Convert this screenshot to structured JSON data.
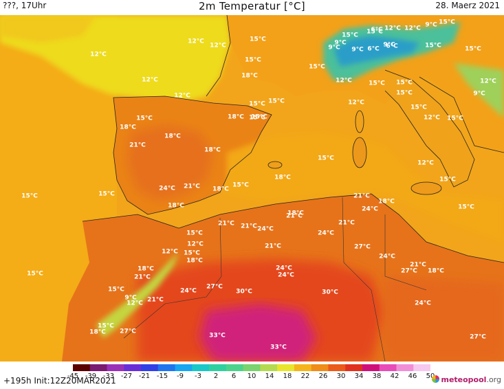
{
  "header": {
    "left": "???, 17Uhr",
    "title": "2m Temperatur [°C]",
    "date": "28. Maerz 2021"
  },
  "footer": {
    "init": "+195h Init:12Z20MAR2021",
    "brand": "meteopool",
    "brand_tld": ".org"
  },
  "legend": {
    "ticks": [
      "-45",
      "-39",
      "-33",
      "-27",
      "-21",
      "-15",
      "-9",
      "-3",
      "2",
      "6",
      "10",
      "14",
      "18",
      "22",
      "26",
      "30",
      "34",
      "38",
      "42",
      "46",
      "50"
    ],
    "colors": [
      "#5a0000",
      "#7a1a70",
      "#9b30b8",
      "#6a2ed8",
      "#3040e6",
      "#1f75ee",
      "#17a6f0",
      "#18c8c8",
      "#2fd0a0",
      "#4bd38b",
      "#79d36e",
      "#b4da4f",
      "#e9e52a",
      "#f5b51a",
      "#f08c18",
      "#eb5a18",
      "#e2301f",
      "#d0107a",
      "#e84cb8",
      "#f08fd8",
      "#f7c8f0"
    ]
  },
  "map_labels": [
    {
      "text": "12°C"
    },
    {
      "text": "12°C"
    },
    {
      "text": "12°C"
    },
    {
      "text": "15°C"
    },
    {
      "text": "15°C"
    },
    {
      "text": "18°C"
    },
    {
      "text": "12°C"
    },
    {
      "text": "12°C"
    },
    {
      "text": "15°C"
    },
    {
      "text": "18°C"
    },
    {
      "text": "21°C"
    },
    {
      "text": "18°C"
    },
    {
      "text": "18°C"
    },
    {
      "text": "18°C"
    },
    {
      "text": "15°C"
    },
    {
      "text": "15°C"
    },
    {
      "text": "15°C"
    },
    {
      "text": "24°C"
    },
    {
      "text": "21°C"
    },
    {
      "text": "18°C"
    },
    {
      "text": "15°C"
    },
    {
      "text": "18°C"
    },
    {
      "text": "18°C"
    },
    {
      "text": "15°C"
    },
    {
      "text": "15°C"
    },
    {
      "text": "15°C"
    },
    {
      "text": "15°C"
    },
    {
      "text": "12°C"
    },
    {
      "text": "15°C"
    },
    {
      "text": "15°C"
    },
    {
      "text": "12°C"
    },
    {
      "text": "15°C"
    },
    {
      "text": "12°C"
    },
    {
      "text": "12°C"
    },
    {
      "text": "9°C"
    },
    {
      "text": "9°C"
    },
    {
      "text": "15°C"
    },
    {
      "text": "9°C"
    },
    {
      "text": "6°C"
    },
    {
      "text": "15°C"
    },
    {
      "text": "6°C"
    },
    {
      "text": "12°C"
    },
    {
      "text": "9°C"
    },
    {
      "text": "6°C"
    },
    {
      "text": "9°C"
    },
    {
      "text": "15°C"
    },
    {
      "text": "12°C"
    },
    {
      "text": "15°C"
    },
    {
      "text": "15°C"
    },
    {
      "text": "15°C"
    },
    {
      "text": "15°C"
    },
    {
      "text": "15°C"
    },
    {
      "text": "12°C"
    },
    {
      "text": "15°C"
    },
    {
      "text": "9°C"
    },
    {
      "text": "15°C"
    },
    {
      "text": "15°C"
    },
    {
      "text": "18°C"
    },
    {
      "text": "21°C"
    },
    {
      "text": "21°C"
    },
    {
      "text": "24°C"
    },
    {
      "text": "21°C"
    },
    {
      "text": "21°C"
    },
    {
      "text": "24°C"
    },
    {
      "text": "21°C"
    },
    {
      "text": "21°C"
    },
    {
      "text": "24°C"
    },
    {
      "text": "18°C"
    },
    {
      "text": "27°C"
    },
    {
      "text": "24°C"
    },
    {
      "text": "27°C"
    },
    {
      "text": "21°C"
    },
    {
      "text": "18°C"
    },
    {
      "text": "24°C"
    },
    {
      "text": "27°C"
    },
    {
      "text": "15°C"
    },
    {
      "text": "12°C"
    },
    {
      "text": "15°C"
    },
    {
      "text": "18°C"
    },
    {
      "text": "18°C"
    },
    {
      "text": "21°C"
    },
    {
      "text": "15°C"
    },
    {
      "text": "9°C"
    },
    {
      "text": "12°C"
    },
    {
      "text": "21°C"
    },
    {
      "text": "24°C"
    },
    {
      "text": "27°C"
    },
    {
      "text": "30°C"
    },
    {
      "text": "30°C"
    },
    {
      "text": "15°C"
    },
    {
      "text": "18°C"
    },
    {
      "text": "27°C"
    },
    {
      "text": "33°C"
    },
    {
      "text": "33°C"
    },
    {
      "text": "24°C"
    },
    {
      "text": "24°C"
    },
    {
      "text": "12°C"
    }
  ]
}
